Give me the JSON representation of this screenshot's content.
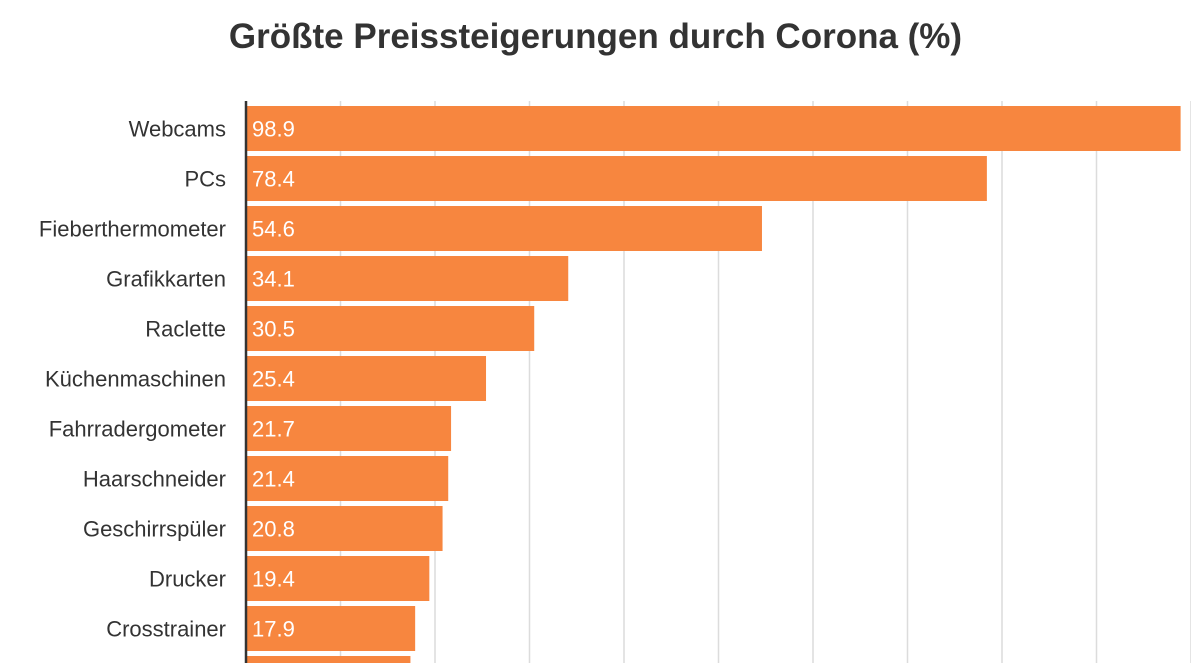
{
  "chart_data": {
    "type": "bar",
    "orientation": "horizontal",
    "title": "Größte Preissteigerungen durch Corona (%)",
    "categories": [
      "Webcams",
      "PCs",
      "Fieberthermometer",
      "Grafikkarten",
      "Raclette",
      "Küchenmaschinen",
      "Fahrradergometer",
      "Haarschneider",
      "Geschirrspüler",
      "Drucker",
      "Crosstrainer",
      ""
    ],
    "values": [
      98.9,
      78.4,
      54.6,
      34.1,
      30.5,
      25.4,
      21.7,
      21.4,
      20.8,
      19.4,
      17.9,
      17.4
    ],
    "value_labels": [
      "98.9",
      "78.4",
      "54.6",
      "34.1",
      "30.5",
      "25.4",
      "21.7",
      "21.4",
      "20.8",
      "19.4",
      "17.9",
      ""
    ],
    "xlim": [
      0,
      100
    ],
    "grid": true,
    "grid_step": 10,
    "bar_color": "#F7863F",
    "xlabel": "",
    "ylabel": ""
  }
}
